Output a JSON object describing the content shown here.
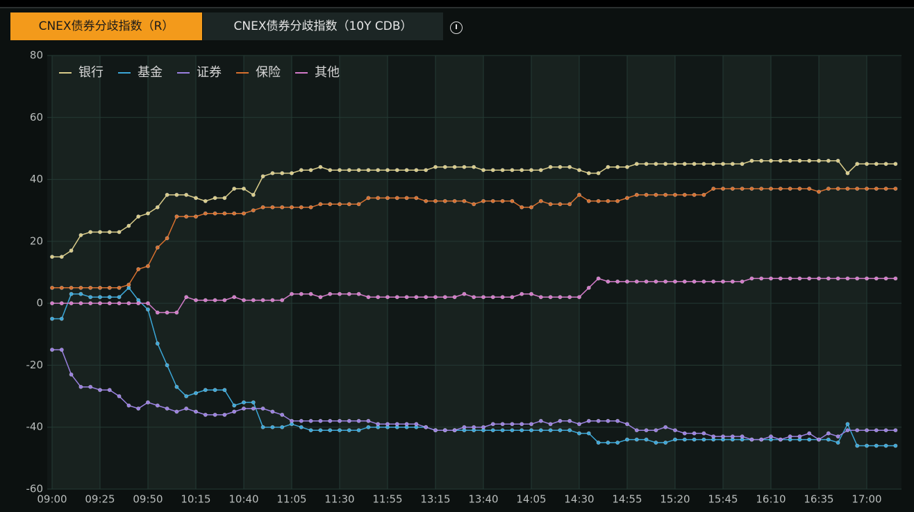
{
  "ui": {
    "tabs": [
      "CNEX债券分歧指数（R）",
      "CNEX债券分歧指数（10Y CDB）"
    ]
  },
  "chart_data": {
    "type": "line",
    "grid": true,
    "legend": "top-left",
    "ylim": [
      -60,
      80
    ],
    "yticks": [
      -60,
      -40,
      -20,
      0,
      20,
      40,
      60,
      80
    ],
    "categories": [
      "09:00",
      null,
      null,
      null,
      null,
      "09:25",
      null,
      null,
      null,
      null,
      "09:50",
      null,
      null,
      null,
      null,
      "10:15",
      null,
      null,
      null,
      null,
      "10:40",
      null,
      null,
      null,
      null,
      "11:05",
      null,
      null,
      null,
      null,
      "11:30",
      null,
      null,
      null,
      null,
      "11:55",
      null,
      null,
      null,
      null,
      "13:15",
      null,
      null,
      null,
      null,
      "13:40",
      null,
      null,
      null,
      null,
      "14:05",
      null,
      null,
      null,
      null,
      "14:30",
      null,
      null,
      null,
      null,
      "14:55",
      null,
      null,
      null,
      null,
      "15:20",
      null,
      null,
      null,
      null,
      "15:45",
      null,
      null,
      null,
      null,
      "16:10",
      null,
      null,
      null,
      null,
      "16:35",
      null,
      null,
      null,
      null,
      "17:00",
      null,
      null,
      null
    ],
    "series": [
      {
        "name": "银行",
        "color": "#d9cc8a",
        "values": [
          15,
          15,
          17,
          22,
          23,
          23,
          23,
          23,
          25,
          28,
          29,
          31,
          35,
          35,
          35,
          34,
          33,
          34,
          34,
          37,
          37,
          35,
          41,
          42,
          42,
          42,
          43,
          43,
          44,
          43,
          43,
          43,
          43,
          43,
          43,
          43,
          43,
          43,
          43,
          43,
          44,
          44,
          44,
          44,
          44,
          43,
          43,
          43,
          43,
          43,
          43,
          43,
          44,
          44,
          44,
          43,
          42,
          42,
          44,
          44,
          44,
          45,
          45,
          45,
          45,
          45,
          45,
          45,
          45,
          45,
          45,
          45,
          45,
          46,
          46,
          46,
          46,
          46,
          46,
          46,
          46,
          46,
          46,
          42,
          45,
          45,
          45,
          45,
          45
        ]
      },
      {
        "name": "基金",
        "color": "#3ba7d8",
        "values": [
          -5,
          -5,
          3,
          3,
          2,
          2,
          2,
          2,
          5,
          1,
          -2,
          -13,
          -20,
          -27,
          -30,
          -29,
          -28,
          -28,
          -28,
          -33,
          -32,
          -32,
          -40,
          -40,
          -40,
          -39,
          -40,
          -41,
          -41,
          -41,
          -41,
          -41,
          -41,
          -40,
          -40,
          -40,
          -40,
          -40,
          -40,
          -40,
          -41,
          -41,
          -41,
          -41,
          -41,
          -41,
          -41,
          -41,
          -41,
          -41,
          -41,
          -41,
          -41,
          -41,
          -41,
          -42,
          -42,
          -45,
          -45,
          -45,
          -44,
          -44,
          -44,
          -45,
          -45,
          -44,
          -44,
          -44,
          -44,
          -44,
          -44,
          -44,
          -44,
          -44,
          -44,
          -44,
          -44,
          -44,
          -44,
          -44,
          -44,
          -44,
          -45,
          -39,
          -46,
          -46,
          -46,
          -46,
          -46
        ]
      },
      {
        "name": "证券",
        "color": "#9a80e0",
        "values": [
          -15,
          -15,
          -23,
          -27,
          -27,
          -28,
          -28,
          -30,
          -33,
          -34,
          -32,
          -33,
          -34,
          -35,
          -34,
          -35,
          -36,
          -36,
          -36,
          -35,
          -34,
          -34,
          -34,
          -35,
          -36,
          -38,
          -38,
          -38,
          -38,
          -38,
          -38,
          -38,
          -38,
          -38,
          -39,
          -39,
          -39,
          -39,
          -39,
          -40,
          -41,
          -41,
          -41,
          -40,
          -40,
          -40,
          -39,
          -39,
          -39,
          -39,
          -39,
          -38,
          -39,
          -38,
          -38,
          -39,
          -38,
          -38,
          -38,
          -38,
          -39,
          -41,
          -41,
          -41,
          -40,
          -41,
          -42,
          -42,
          -42,
          -43,
          -43,
          -43,
          -43,
          -44,
          -44,
          -43,
          -44,
          -43,
          -43,
          -42,
          -44,
          -42,
          -43,
          -41,
          -41,
          -41,
          -41,
          -41,
          -41
        ]
      },
      {
        "name": "保险",
        "color": "#d8702e",
        "values": [
          5,
          5,
          5,
          5,
          5,
          5,
          5,
          5,
          6,
          11,
          12,
          18,
          21,
          28,
          28,
          28,
          29,
          29,
          29,
          29,
          29,
          30,
          31,
          31,
          31,
          31,
          31,
          31,
          32,
          32,
          32,
          32,
          32,
          34,
          34,
          34,
          34,
          34,
          34,
          33,
          33,
          33,
          33,
          33,
          32,
          33,
          33,
          33,
          33,
          31,
          31,
          33,
          32,
          32,
          32,
          35,
          33,
          33,
          33,
          33,
          34,
          35,
          35,
          35,
          35,
          35,
          35,
          35,
          35,
          37,
          37,
          37,
          37,
          37,
          37,
          37,
          37,
          37,
          37,
          37,
          36,
          37,
          37,
          37,
          37,
          37,
          37,
          37,
          37
        ]
      },
      {
        "name": "其他",
        "color": "#d27ac8",
        "values": [
          0,
          0,
          0,
          0,
          0,
          0,
          0,
          0,
          0,
          0,
          0,
          -3,
          -3,
          -3,
          2,
          1,
          1,
          1,
          1,
          2,
          1,
          1,
          1,
          1,
          1,
          3,
          3,
          3,
          2,
          3,
          3,
          3,
          3,
          2,
          2,
          2,
          2,
          2,
          2,
          2,
          2,
          2,
          2,
          3,
          2,
          2,
          2,
          2,
          2,
          3,
          3,
          2,
          2,
          2,
          2,
          2,
          5,
          8,
          7,
          7,
          7,
          7,
          7,
          7,
          7,
          7,
          7,
          7,
          7,
          7,
          7,
          7,
          7,
          8,
          8,
          8,
          8,
          8,
          8,
          8,
          8,
          8,
          8,
          8,
          8,
          8,
          8,
          8,
          8
        ]
      }
    ]
  }
}
